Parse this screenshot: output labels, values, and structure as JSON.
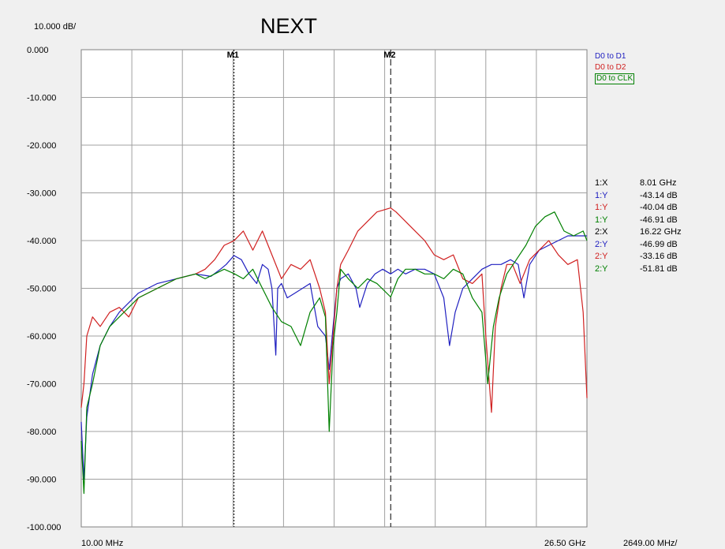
{
  "title": "NEXT",
  "scale_label": "10.000 dB/",
  "x_axis": {
    "start_label": "10.00 MHz",
    "end_label": "26.50 GHz",
    "div_label": "2649.00 MHz/"
  },
  "legend": [
    {
      "name": "D0 to D1",
      "color": "#2020c0"
    },
    {
      "name": "D0 to D2",
      "color": "#d02020"
    },
    {
      "name": "D0 to CLK",
      "color": "#008000"
    }
  ],
  "markers": [
    {
      "label": "M1",
      "x": 8.01
    },
    {
      "label": "M2",
      "x": 16.22
    }
  ],
  "readout": [
    {
      "key": "1:X",
      "value": "8.01 GHz",
      "color": "#000000"
    },
    {
      "key": "1:Y",
      "value": "-43.14 dB",
      "color": "#2020c0"
    },
    {
      "key": "1:Y",
      "value": "-40.04 dB",
      "color": "#d02020"
    },
    {
      "key": "1:Y",
      "value": "-46.91 dB",
      "color": "#008000"
    },
    {
      "key": "2:X",
      "value": "16.22 GHz",
      "color": "#000000"
    },
    {
      "key": "2:Y",
      "value": "-46.99 dB",
      "color": "#2020c0"
    },
    {
      "key": "2:Y",
      "value": "-33.16 dB",
      "color": "#d02020"
    },
    {
      "key": "2:Y",
      "value": "-51.81 dB",
      "color": "#008000"
    }
  ],
  "chart_data": {
    "type": "line",
    "title": "NEXT",
    "xlabel": "",
    "ylabel": "",
    "x_unit": "GHz",
    "xlim": [
      0.01,
      26.5
    ],
    "ylim": [
      -100,
      0
    ],
    "y_ticks": [
      "0.000",
      "-10.000",
      "-20.000",
      "-30.000",
      "-40.000",
      "-50.000",
      "-60.000",
      "-70.000",
      "-80.000",
      "-90.000",
      "-100.000"
    ],
    "grid": true,
    "x_divisions": 10,
    "legend_position": "top-right",
    "series": [
      {
        "name": "D0 to D1",
        "color": "#2020c0",
        "x": [
          0.01,
          0.15,
          0.3,
          0.6,
          1.0,
          1.5,
          2.0,
          3.0,
          4.0,
          5.0,
          6.0,
          6.8,
          7.3,
          7.6,
          8.01,
          8.4,
          8.8,
          9.2,
          9.5,
          9.8,
          10.0,
          10.2,
          10.3,
          10.5,
          10.8,
          11.2,
          11.6,
          12.0,
          12.4,
          12.8,
          13.0,
          13.2,
          13.4,
          13.6,
          14.0,
          14.4,
          14.6,
          15.0,
          15.4,
          15.8,
          16.22,
          16.6,
          17.0,
          17.5,
          18.0,
          18.5,
          19.0,
          19.3,
          19.6,
          20.0,
          20.5,
          21.0,
          21.5,
          22.0,
          22.5,
          22.9,
          23.2,
          23.5,
          24.0,
          24.5,
          25.0,
          25.5,
          26.0,
          26.5
        ],
        "y": [
          -78,
          -90,
          -77,
          -68,
          -62,
          -58,
          -55,
          -51,
          -49,
          -48,
          -47,
          -47.5,
          -46,
          -45,
          -43.14,
          -44,
          -47,
          -49,
          -45,
          -46,
          -50,
          -64,
          -50,
          -49,
          -52,
          -51,
          -50,
          -49,
          -58,
          -60,
          -67,
          -58,
          -50,
          -48,
          -47,
          -50,
          -54,
          -49,
          -47,
          -46,
          -46.99,
          -46,
          -47,
          -46,
          -46,
          -47,
          -52,
          -62,
          -55,
          -50,
          -48,
          -46,
          -45,
          -45,
          -44,
          -45,
          -52,
          -45,
          -42,
          -41,
          -40,
          -39,
          -39,
          -39
        ]
      },
      {
        "name": "D0 to D2",
        "color": "#d02020",
        "x": [
          0.01,
          0.15,
          0.3,
          0.6,
          1.0,
          1.5,
          2.0,
          2.5,
          3.0,
          4.0,
          5.0,
          6.0,
          6.5,
          7.0,
          7.5,
          8.01,
          8.5,
          9.0,
          9.5,
          10.0,
          10.5,
          11.0,
          11.5,
          12.0,
          12.5,
          12.8,
          13.0,
          13.2,
          13.4,
          13.6,
          14.0,
          14.5,
          15.0,
          15.5,
          16.22,
          16.5,
          17.0,
          17.5,
          18.0,
          18.5,
          19.0,
          19.5,
          20.0,
          20.5,
          21.0,
          21.2,
          21.5,
          21.7,
          22.0,
          22.3,
          22.6,
          23.0,
          23.5,
          24.0,
          24.5,
          25.0,
          25.5,
          26.0,
          26.3,
          26.5
        ],
        "y": [
          -75,
          -70,
          -60,
          -56,
          -58,
          -55,
          -54,
          -56,
          -52,
          -50,
          -48,
          -47,
          -46,
          -44,
          -41,
          -40.04,
          -38,
          -42,
          -38,
          -43,
          -48,
          -45,
          -46,
          -44,
          -50,
          -55,
          -70,
          -60,
          -50,
          -45,
          -42,
          -38,
          -36,
          -34,
          -33.16,
          -34,
          -36,
          -38,
          -40,
          -43,
          -44,
          -43,
          -48,
          -49,
          -47,
          -60,
          -76,
          -58,
          -50,
          -45,
          -45,
          -49,
          -44,
          -42,
          -40,
          -43,
          -45,
          -44,
          -55,
          -73
        ]
      },
      {
        "name": "D0 to CLK",
        "color": "#008000",
        "x": [
          0.01,
          0.15,
          0.3,
          0.6,
          1.0,
          1.5,
          2.0,
          3.0,
          4.0,
          5.0,
          6.0,
          6.5,
          7.0,
          7.5,
          8.01,
          8.5,
          9.0,
          9.5,
          10.0,
          10.5,
          11.0,
          11.5,
          12.0,
          12.5,
          12.8,
          13.0,
          13.2,
          13.4,
          13.6,
          14.0,
          14.5,
          15.0,
          15.5,
          16.22,
          16.6,
          17.0,
          17.5,
          18.0,
          18.5,
          19.0,
          19.5,
          20.0,
          20.5,
          21.0,
          21.3,
          21.6,
          21.9,
          22.3,
          22.8,
          23.3,
          23.8,
          24.3,
          24.8,
          25.3,
          25.8,
          26.3,
          26.5
        ],
        "y": [
          -82,
          -93,
          -75,
          -70,
          -62,
          -58,
          -56,
          -52,
          -50,
          -48,
          -47,
          -48,
          -47,
          -46,
          -46.91,
          -48,
          -46,
          -50,
          -54,
          -57,
          -58,
          -62,
          -55,
          -52,
          -56,
          -80,
          -62,
          -55,
          -46,
          -48,
          -50,
          -48,
          -49,
          -51.81,
          -48,
          -46,
          -46,
          -47,
          -47,
          -48,
          -46,
          -47,
          -52,
          -55,
          -70,
          -58,
          -52,
          -47,
          -44,
          -41,
          -37,
          -35,
          -34,
          -38,
          -39,
          -38,
          -40
        ]
      }
    ]
  }
}
